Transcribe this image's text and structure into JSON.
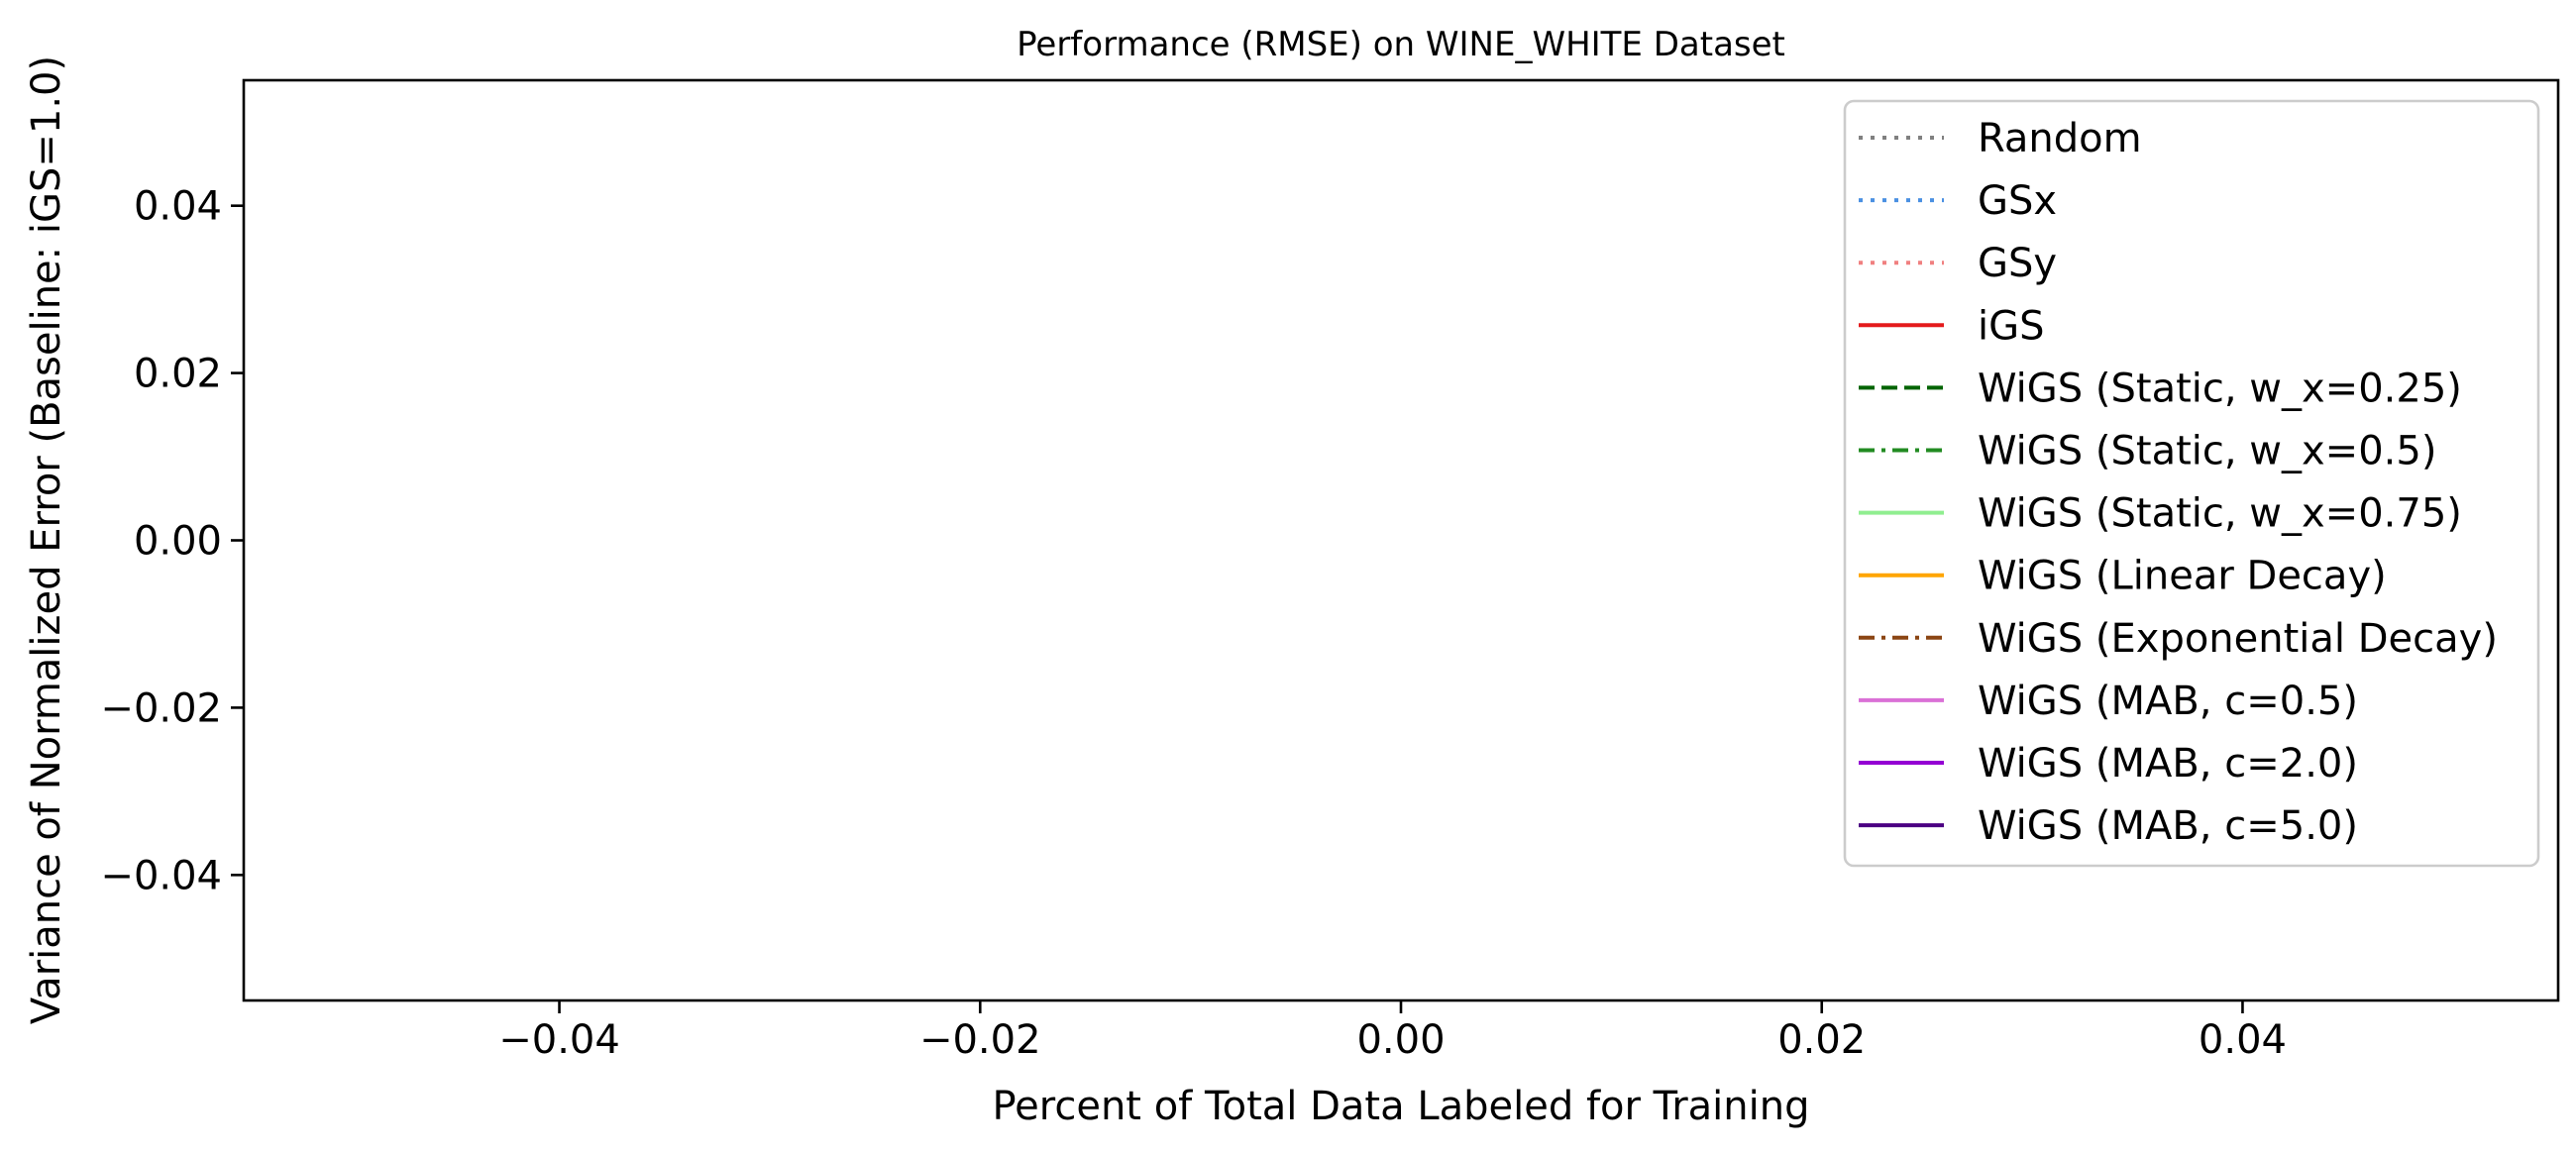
{
  "chart_data": {
    "type": "line",
    "title": "Performance (RMSE) on WINE_WHITE Dataset",
    "xlabel": "Percent of Total Data Labeled for Training",
    "ylabel": "Variance of Normalized Error (Baseline: iGS=1.0)",
    "xlim": [
      -0.055,
      0.055
    ],
    "ylim": [
      -0.055,
      0.055
    ],
    "xticks": [
      -0.04,
      -0.02,
      0.0,
      0.02,
      0.04
    ],
    "yticks": [
      -0.04,
      -0.02,
      0.0,
      0.02,
      0.04
    ],
    "xtick_labels": [
      "−0.04",
      "−0.02",
      "0.00",
      "0.02",
      "0.04"
    ],
    "ytick_labels": [
      "−0.04",
      "−0.02",
      "0.00",
      "0.02",
      "0.04"
    ],
    "grid": false,
    "legend_position": "upper right",
    "series": [
      {
        "name": "Random",
        "color": "#808080",
        "style": "dotted",
        "x": [],
        "y": []
      },
      {
        "name": "GSx",
        "color": "#4a90e2",
        "style": "dotted",
        "x": [],
        "y": []
      },
      {
        "name": "GSy",
        "color": "#f08080",
        "style": "dotted",
        "x": [],
        "y": []
      },
      {
        "name": "iGS",
        "color": "#e41a1c",
        "style": "solid",
        "x": [],
        "y": []
      },
      {
        "name": "WiGS (Static, w_x=0.25)",
        "color": "#006400",
        "style": "dashed",
        "x": [],
        "y": []
      },
      {
        "name": "WiGS (Static, w_x=0.5)",
        "color": "#228b22",
        "style": "dashdot",
        "x": [],
        "y": []
      },
      {
        "name": "WiGS (Static, w_x=0.75)",
        "color": "#90ee90",
        "style": "solid",
        "x": [],
        "y": []
      },
      {
        "name": "WiGS (Linear Decay)",
        "color": "#ffa500",
        "style": "solid",
        "x": [],
        "y": []
      },
      {
        "name": "WiGS (Exponential Decay)",
        "color": "#8b4513",
        "style": "dashdot",
        "x": [],
        "y": []
      },
      {
        "name": "WiGS (MAB, c=0.5)",
        "color": "#da70d6",
        "style": "solid",
        "x": [],
        "y": []
      },
      {
        "name": "WiGS (MAB, c=2.0)",
        "color": "#9400d3",
        "style": "solid",
        "x": [],
        "y": []
      },
      {
        "name": "WiGS (MAB, c=5.0)",
        "color": "#4b0082",
        "style": "solid",
        "x": [],
        "y": []
      }
    ]
  }
}
